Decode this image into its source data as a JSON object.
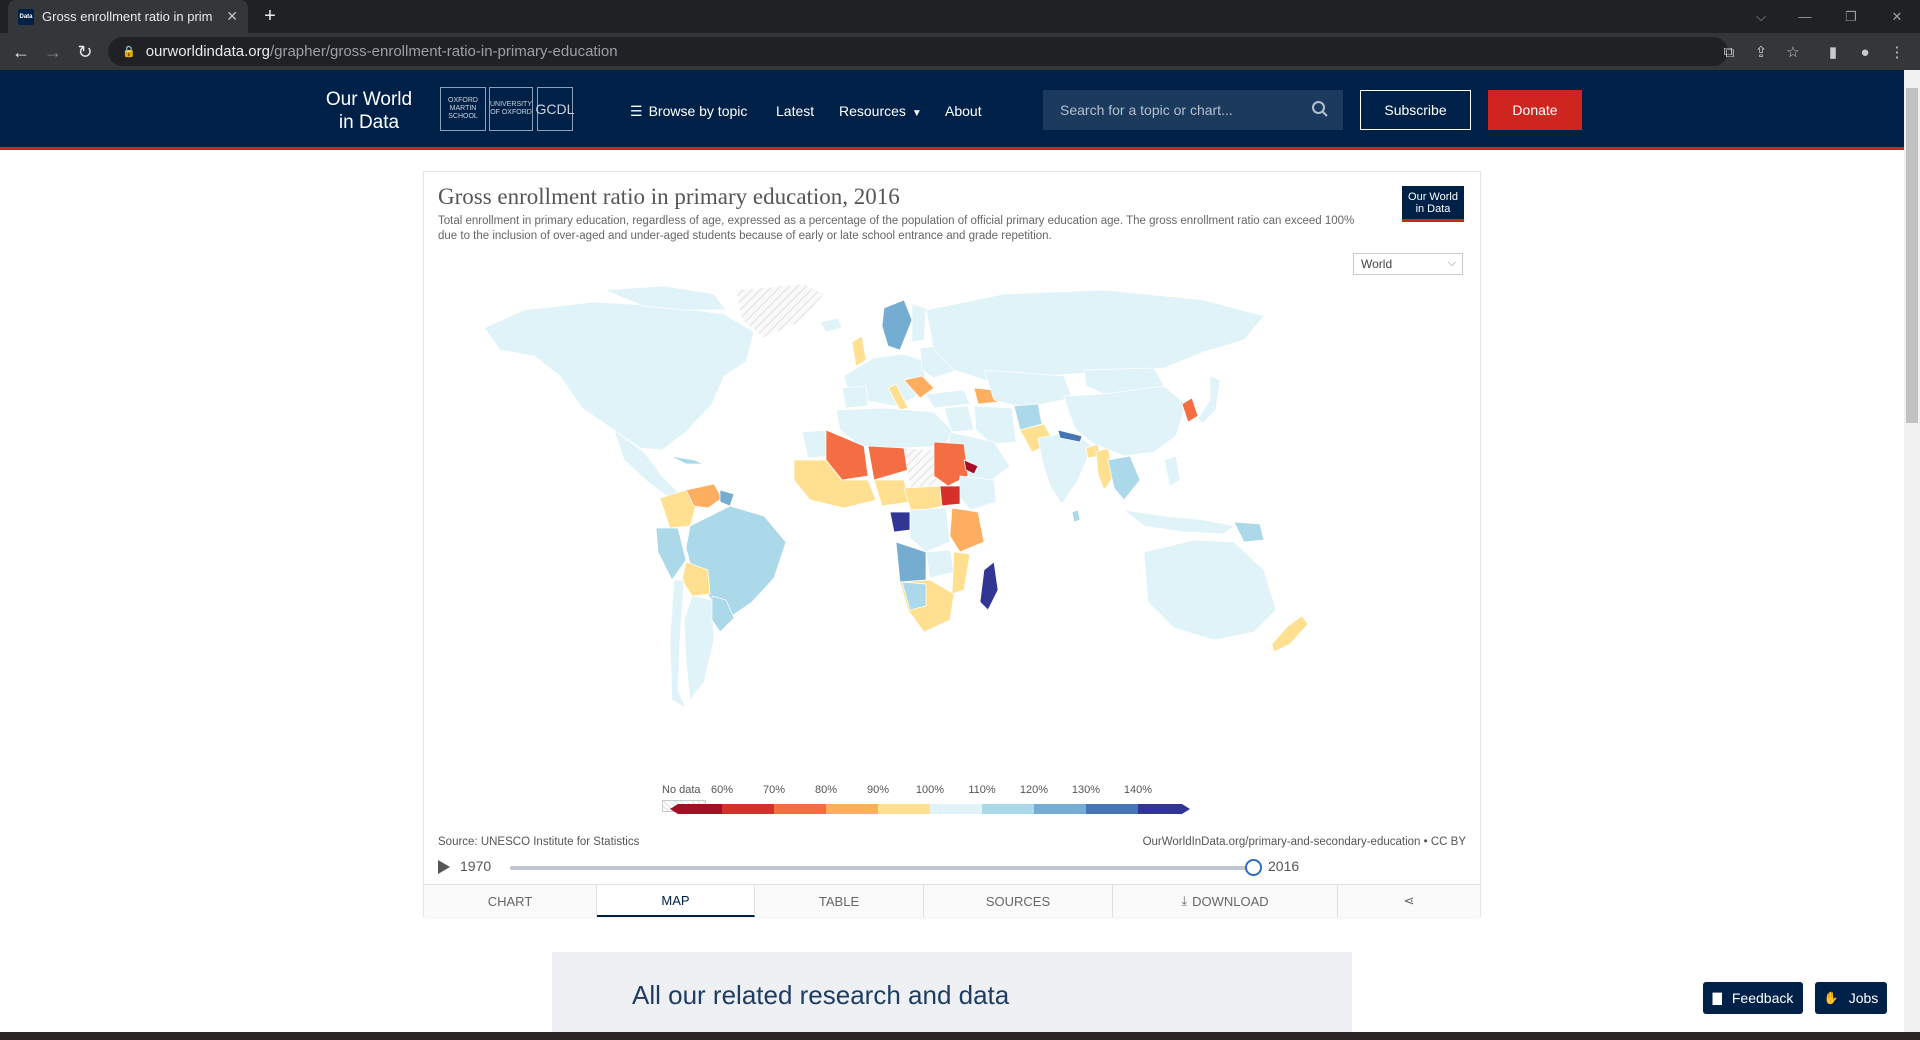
{
  "browser": {
    "tab_title": "Gross enrollment ratio in prim",
    "tab_favicon_text": "Data",
    "url_host": "ourworldindata.org",
    "url_path": "/grapher/gross-enrollment-ratio-in-primary-education"
  },
  "header": {
    "logo": [
      "Our World",
      "in Data"
    ],
    "badges": [
      "OXFORD MARTIN SCHOOL",
      "UNIVERSITY OF OXFORD",
      "GCDL"
    ],
    "nav": [
      "Browse by topic",
      "Latest",
      "Resources",
      "About"
    ],
    "search_placeholder": "Search for a topic or chart...",
    "subscribe": "Subscribe",
    "donate": "Donate"
  },
  "chart": {
    "title": "Gross enrollment ratio in primary education, 2016",
    "subtitle": "Total enrollment in primary education, regardless of age, expressed as a percentage of the population of official primary education age. The gross enrollment ratio can exceed 100% due to the inclusion of over-aged and under-aged students because of early or late school entrance and grade repetition.",
    "logo": [
      "Our World",
      "in Data"
    ],
    "region": "World",
    "source": "Source: UNESCO Institute for Statistics",
    "license": "OurWorldInData.org/primary-and-secondary-education • CC BY",
    "year_start": "1970",
    "year_end": "2016",
    "tabs": [
      "CHART",
      "MAP",
      "TABLE",
      "SOURCES",
      "DOWNLOAD",
      ""
    ]
  },
  "chart_data": {
    "type": "heatmap",
    "title": "Gross enrollment ratio in primary education, 2016",
    "legend": {
      "no_data_label": "No data",
      "thresholds": [
        "60%",
        "70%",
        "80%",
        "90%",
        "100%",
        "110%",
        "120%",
        "130%",
        "140%"
      ],
      "colors": [
        "#a50f26",
        "#d7302a",
        "#f46d43",
        "#fdae61",
        "#fee090",
        "#e0f3f8",
        "#abd9e9",
        "#74add1",
        "#4575b4",
        "#313695"
      ]
    },
    "year_range": [
      1970,
      2016
    ],
    "selected_year": 2016
  },
  "related": {
    "title": "All our related research and data"
  },
  "floating": {
    "feedback": "Feedback",
    "jobs": "Jobs"
  }
}
